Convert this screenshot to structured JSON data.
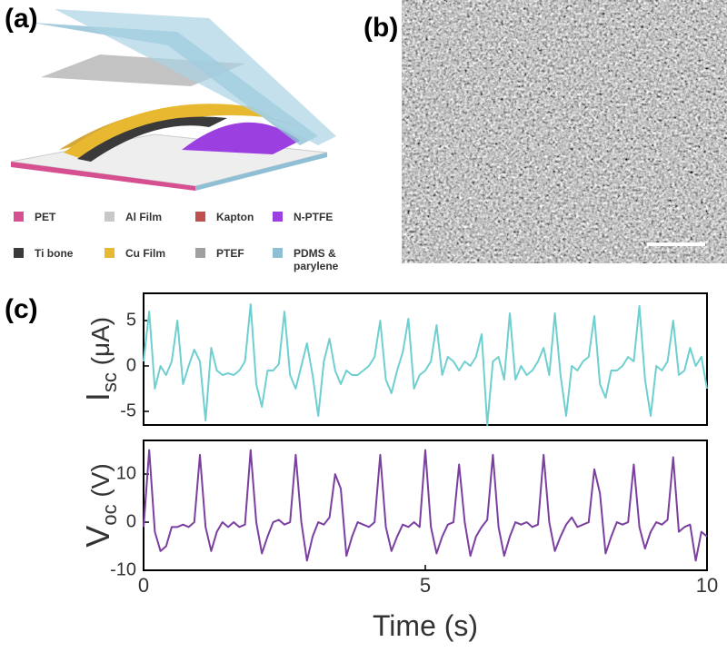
{
  "panel_labels": [
    "(a)",
    "(b)",
    "(c)"
  ],
  "legend": [
    {
      "label": "PET",
      "color": "#d64f91"
    },
    {
      "label": "Al Film",
      "color": "#c8c8c8"
    },
    {
      "label": "Kapton",
      "color": "#c0504d"
    },
    {
      "label": "N-PTFE",
      "color": "#9b3fe0"
    },
    {
      "label": "Ti bone",
      "color": "#3a3a3a"
    },
    {
      "label": "Cu Film",
      "color": "#e8b830"
    },
    {
      "label": "PTEF",
      "color": "#a0a0a0"
    },
    {
      "label": "PDMS & parylene",
      "color": "#8fbfd4"
    }
  ],
  "chart_data": [
    {
      "type": "line",
      "ylabel": {
        "main": "I",
        "sub": "sc",
        "unit": "(μA)"
      },
      "color": "#6fcfd0",
      "xlim": [
        0,
        10
      ],
      "ylim": [
        -6.5,
        8
      ],
      "yticks": [
        -5,
        0,
        5
      ],
      "x": [
        0,
        0.1,
        0.2,
        0.3,
        0.4,
        0.5,
        0.6,
        0.7,
        0.8,
        0.9,
        1,
        1.1,
        1.2,
        1.3,
        1.4,
        1.5,
        1.6,
        1.7,
        1.8,
        1.9,
        2,
        2.1,
        2.2,
        2.3,
        2.4,
        2.5,
        2.6,
        2.7,
        2.8,
        2.9,
        3,
        3.1,
        3.2,
        3.3,
        3.4,
        3.5,
        3.6,
        3.7,
        3.8,
        3.9,
        4,
        4.1,
        4.2,
        4.3,
        4.4,
        4.5,
        4.6,
        4.7,
        4.8,
        4.9,
        5,
        5.1,
        5.2,
        5.3,
        5.4,
        5.5,
        5.6,
        5.7,
        5.8,
        5.9,
        6,
        6.1,
        6.2,
        6.3,
        6.4,
        6.5,
        6.6,
        6.7,
        6.8,
        6.9,
        7,
        7.1,
        7.2,
        7.3,
        7.4,
        7.5,
        7.6,
        7.7,
        7.8,
        7.9,
        8,
        8.1,
        8.2,
        8.3,
        8.4,
        8.5,
        8.6,
        8.7,
        8.8,
        8.9,
        9,
        9.1,
        9.2,
        9.3,
        9.4,
        9.5,
        9.6,
        9.7,
        9.8,
        9.9,
        10
      ],
      "values": [
        0.5,
        6,
        -2.5,
        0,
        -1,
        0.5,
        5,
        -2,
        0,
        1.8,
        0.5,
        -6,
        2,
        -0.5,
        -1,
        -0.8,
        -1,
        -0.5,
        0.5,
        6.8,
        -2,
        -4.5,
        -0.5,
        -0.5,
        0.2,
        6,
        -1,
        -2.5,
        0,
        2.5,
        -1,
        -5.5,
        0.5,
        3,
        -0.5,
        -2,
        -0.5,
        -1,
        -1,
        -0.5,
        0,
        1,
        5,
        -1.5,
        -3,
        -0.5,
        1.5,
        5.2,
        -2.5,
        -1,
        -0.5,
        0.5,
        4.5,
        -1,
        1,
        0.5,
        -0.5,
        0.5,
        0,
        1,
        3.5,
        -6.5,
        0.5,
        1,
        -1.5,
        5.8,
        -1.5,
        0,
        -1,
        -0.5,
        0.5,
        2,
        -1,
        5.8,
        -1,
        -5.5,
        0,
        -0.5,
        0.5,
        1,
        5.5,
        -2,
        -3.5,
        -0.5,
        -0.5,
        0,
        1,
        0.5,
        6.6,
        -1.5,
        -5.5,
        0,
        -0.5,
        0.5,
        5,
        -1,
        -0.5,
        2,
        0,
        1,
        -2.5
      ]
    },
    {
      "type": "line",
      "ylabel": {
        "main": "V",
        "sub": "oc",
        "unit": "(V)"
      },
      "xlabel": "Time (s)",
      "color": "#7b3fa0",
      "xlim": [
        0,
        10
      ],
      "ylim": [
        -10,
        17
      ],
      "yticks": [
        -10,
        0,
        10
      ],
      "xticks": [
        0,
        5,
        10
      ],
      "x": [
        0,
        0.1,
        0.2,
        0.3,
        0.4,
        0.5,
        0.6,
        0.7,
        0.8,
        0.9,
        1,
        1.1,
        1.2,
        1.3,
        1.4,
        1.5,
        1.6,
        1.7,
        1.8,
        1.9,
        2,
        2.1,
        2.2,
        2.3,
        2.4,
        2.5,
        2.6,
        2.7,
        2.8,
        2.9,
        3,
        3.1,
        3.2,
        3.3,
        3.4,
        3.5,
        3.6,
        3.7,
        3.8,
        3.9,
        4,
        4.1,
        4.2,
        4.3,
        4.4,
        4.5,
        4.6,
        4.7,
        4.8,
        4.9,
        5,
        5.1,
        5.2,
        5.3,
        5.4,
        5.5,
        5.6,
        5.7,
        5.8,
        5.9,
        6,
        6.1,
        6.2,
        6.3,
        6.4,
        6.5,
        6.6,
        6.7,
        6.8,
        6.9,
        7,
        7.1,
        7.2,
        7.3,
        7.4,
        7.5,
        7.6,
        7.7,
        7.8,
        7.9,
        8,
        8.1,
        8.2,
        8.3,
        8.4,
        8.5,
        8.6,
        8.7,
        8.8,
        8.9,
        9,
        9.1,
        9.2,
        9.3,
        9.4,
        9.5,
        9.6,
        9.7,
        9.8,
        9.9,
        10
      ],
      "values": [
        -1,
        15,
        -2,
        -6,
        -5,
        -1,
        -1,
        -0.5,
        -1,
        0,
        14,
        -1,
        -6,
        -2,
        0,
        -1,
        0,
        -1,
        -0.5,
        15,
        0,
        -6.5,
        -3,
        0,
        0.5,
        -0.5,
        0,
        14,
        0,
        -8,
        -3,
        0,
        -0.5,
        1,
        10,
        7,
        -7,
        -3,
        0,
        -0.5,
        -1,
        0,
        14,
        -1,
        -6,
        -3,
        -0.5,
        -1,
        0,
        -1,
        15,
        -1,
        -6.5,
        -3,
        -0.5,
        0,
        12,
        0,
        -7,
        -3,
        -1,
        0.5,
        14,
        -1,
        -7,
        -3,
        0,
        -0.5,
        0,
        -1,
        -0.5,
        14,
        0,
        -6,
        -3,
        -0.5,
        1,
        -1,
        -0.5,
        0,
        11,
        6,
        -6.5,
        -3,
        0,
        -0.5,
        0,
        12,
        -1,
        -5.5,
        -2,
        0,
        -0.5,
        0.5,
        13.5,
        -2,
        -1,
        -0.5,
        -8,
        -2,
        -3
      ]
    }
  ]
}
